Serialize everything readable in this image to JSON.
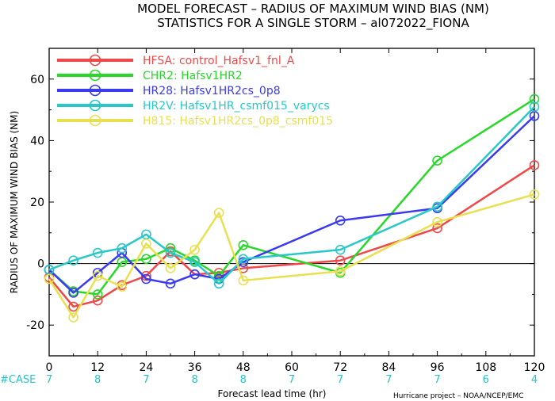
{
  "title_line1": "MODEL FORECAST – RADIUS OF MAXIMUM WIND BIAS (NM)",
  "title_line2": "STATISTICS FOR A SINGLE STORM – al072022_FIONA",
  "credit": "Hurricane project – NOAA/NCEP/EMC",
  "case_label": "#CASE",
  "colors": {
    "HFSA": "#f04848",
    "CHR2": "#28d828",
    "HR28": "#3a3af0",
    "HR2V": "#28c8c8",
    "H815": "#e8e050",
    "zero_line": "#000000",
    "case_text": "#1ec8c8"
  },
  "chart_data": {
    "type": "line",
    "title": "MODEL FORECAST – RADIUS OF MAXIMUM WIND BIAS (NM)",
    "subtitle": "STATISTICS FOR A SINGLE STORM – al072022_FIONA",
    "xlabel": "Forecast lead time (hr)",
    "ylabel": "RADIUS OF MAXIMUM WIND BIAS (NM)",
    "xlim": [
      0,
      120
    ],
    "ylim": [
      -30,
      70
    ],
    "xticks": [
      0,
      12,
      24,
      36,
      48,
      60,
      72,
      84,
      96,
      108,
      120
    ],
    "yticks": [
      -20,
      0,
      20,
      40,
      60
    ],
    "grid": false,
    "legend_position": "top-left",
    "case_x": [
      0,
      12,
      24,
      36,
      48,
      60,
      72,
      84,
      96,
      108,
      120
    ],
    "case_counts": [
      7,
      8,
      7,
      8,
      8,
      7,
      7,
      7,
      7,
      6,
      4
    ],
    "series": [
      {
        "key": "HFSA",
        "name": "HFSA: control_Hafsv1_fnl_A",
        "x": [
          0,
          6,
          12,
          18,
          24,
          30,
          36,
          42,
          48,
          72,
          96,
          120
        ],
        "y": [
          -4.5,
          -14,
          -12,
          -7,
          -4,
          4,
          -3.5,
          -3,
          -1.5,
          1,
          11.5,
          32
        ]
      },
      {
        "key": "CHR2",
        "name": "CHR2: Hafsv1HR2",
        "x": [
          0,
          6,
          12,
          18,
          24,
          30,
          36,
          42,
          48,
          72,
          96,
          120
        ],
        "y": [
          -2,
          -9,
          -10,
          0.5,
          1.5,
          5,
          1,
          -4,
          6,
          -3,
          33.5,
          53.5
        ]
      },
      {
        "key": "HR28",
        "name": "HR28: Hafsv1HR2cs_0p8",
        "x": [
          0,
          6,
          12,
          18,
          24,
          30,
          36,
          42,
          48,
          72,
          96,
          120
        ],
        "y": [
          -2,
          -9.5,
          -3,
          3.5,
          -5,
          -6.5,
          -3.5,
          -5,
          0.5,
          14,
          18,
          48
        ]
      },
      {
        "key": "HR2V",
        "name": "HR2V: Hafsv1HR_csmf015_varycs",
        "x": [
          0,
          6,
          12,
          18,
          24,
          30,
          36,
          42,
          48,
          72,
          96,
          120
        ],
        "y": [
          -2,
          1,
          3.5,
          5,
          9.5,
          3.5,
          0.5,
          -6.5,
          1.5,
          4.5,
          18.5,
          51
        ]
      },
      {
        "key": "H815",
        "name": "H815: Hafsv1HR2cs_0p8_csmf015",
        "x": [
          0,
          6,
          12,
          18,
          24,
          30,
          36,
          42,
          48,
          72,
          96,
          120
        ],
        "y": [
          -5,
          -17.5,
          -4,
          -7.5,
          6.5,
          -1.5,
          4.5,
          16.5,
          -5.5,
          -2.5,
          13.5,
          22.5
        ]
      }
    ]
  }
}
